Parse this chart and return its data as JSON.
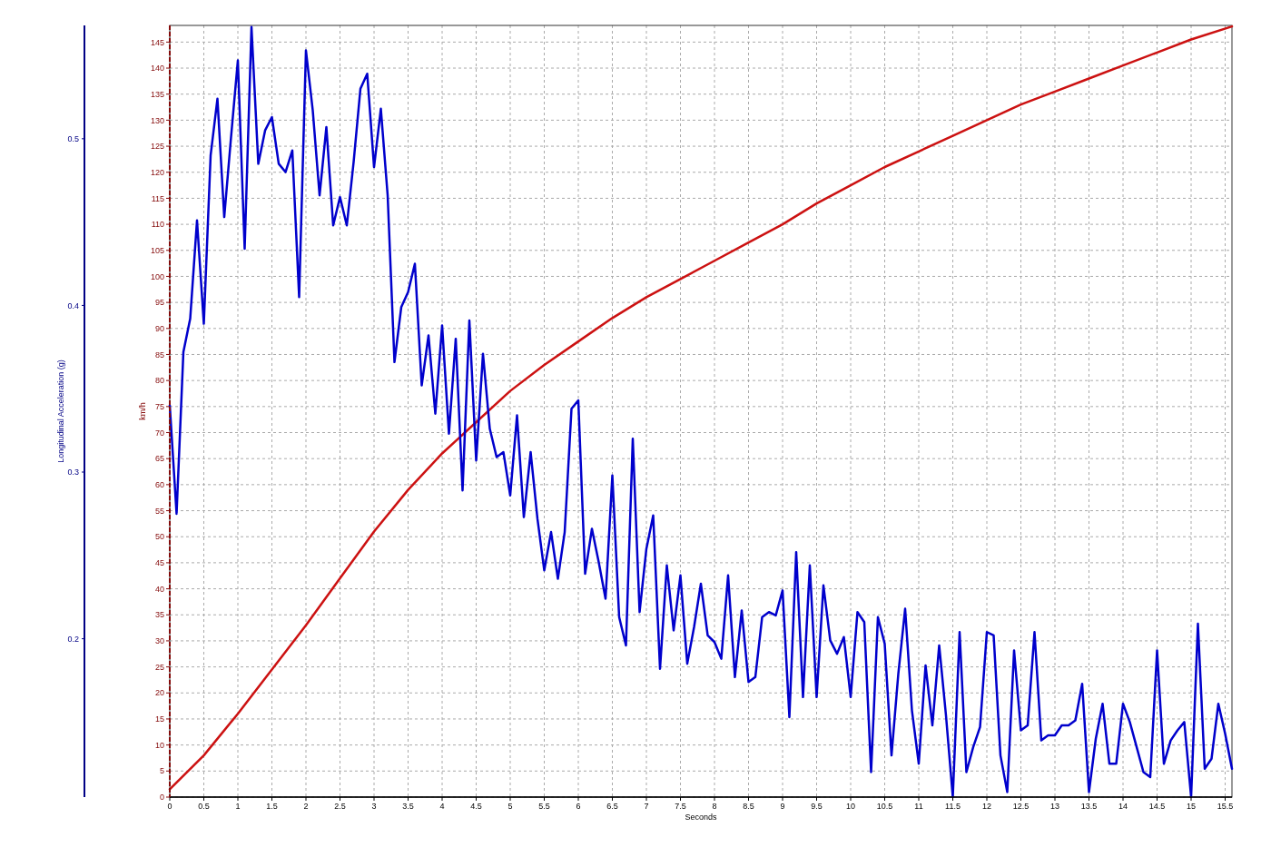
{
  "chart_data": {
    "type": "line",
    "xlabel": "Seconds",
    "ylabel": "km/h",
    "y2label": "Longitudinal Acceleration (g)",
    "xlim": [
      0,
      15.6
    ],
    "xticks": [
      0,
      0.5,
      1,
      1.5,
      2,
      2.5,
      3,
      3.5,
      4,
      4.5,
      5,
      5.5,
      6,
      6.5,
      7,
      7.5,
      8,
      8.5,
      9,
      9.5,
      10,
      10.5,
      11,
      11.5,
      12,
      12.5,
      13,
      13.5,
      14,
      14.5,
      15,
      15.5
    ],
    "ylim": [
      0,
      148.2
    ],
    "yticks": [
      0,
      5,
      10,
      15,
      20,
      25,
      30,
      35,
      40,
      45,
      50,
      55,
      60,
      65,
      70,
      75,
      80,
      85,
      90,
      95,
      100,
      105,
      110,
      115,
      120,
      125,
      130,
      135,
      140,
      145
    ],
    "y2lim": [
      0.105,
      0.568
    ],
    "y2ticks": [
      0.2,
      0.3,
      0.4,
      0.5
    ],
    "grid": true,
    "line_style": "solid",
    "marker": "none",
    "series": [
      {
        "color": "#cc1111",
        "x": [
          0,
          0.5,
          1,
          1.5,
          2,
          2.5,
          3,
          3.5,
          4,
          4.5,
          5,
          5.5,
          6,
          6.5,
          7,
          7.5,
          8,
          8.5,
          9,
          9.5,
          10,
          10.5,
          11,
          11.5,
          12,
          12.5,
          13,
          13.5,
          14,
          14.5,
          15,
          15.6
        ],
        "values": [
          1.5,
          8,
          16,
          24.5,
          33,
          42,
          51,
          59,
          66,
          72,
          78,
          83,
          87.5,
          92,
          96,
          99.5,
          103,
          106.5,
          110,
          114,
          117.5,
          121,
          124,
          127,
          130,
          133,
          135.5,
          138,
          140.5,
          143,
          145.5,
          148
        ]
      },
      {
        "color": "#0000cc",
        "axis": "y2",
        "x": [
          0,
          0.1,
          0.2,
          0.3,
          0.4,
          0.5,
          0.6,
          0.7,
          0.8,
          0.9,
          1,
          1.1,
          1.2,
          1.3,
          1.4,
          1.5,
          1.6,
          1.7,
          1.8,
          1.9,
          2,
          2.1,
          2.2,
          2.3,
          2.4,
          2.5,
          2.6,
          2.7,
          2.8,
          2.9,
          3,
          3.1,
          3.2,
          3.3,
          3.4,
          3.5,
          3.6,
          3.7,
          3.8,
          3.9,
          4,
          4.1,
          4.2,
          4.3,
          4.4,
          4.5,
          4.6,
          4.7,
          4.8,
          4.9,
          5,
          5.1,
          5.2,
          5.3,
          5.4,
          5.5,
          5.6,
          5.7,
          5.8,
          5.9,
          6,
          6.1,
          6.2,
          6.3,
          6.4,
          6.5,
          6.6,
          6.7,
          6.8,
          6.9,
          7,
          7.1,
          7.2,
          7.3,
          7.4,
          7.5,
          7.6,
          7.7,
          7.8,
          7.9,
          8,
          8.1,
          8.2,
          8.3,
          8.4,
          8.5,
          8.6,
          8.7,
          8.8,
          8.9,
          9,
          9.1,
          9.2,
          9.3,
          9.4,
          9.5,
          9.6,
          9.7,
          9.8,
          9.9,
          10,
          10.1,
          10.2,
          10.3,
          10.4,
          10.5,
          10.6,
          10.7,
          10.8,
          10.9,
          11,
          11.1,
          11.2,
          11.3,
          11.4,
          11.5,
          11.6,
          11.7,
          11.8,
          11.9,
          12,
          12.1,
          12.2,
          12.3,
          12.4,
          12.5,
          12.6,
          12.7,
          12.8,
          12.9,
          13,
          13.1,
          13.2,
          13.3,
          13.4,
          13.5,
          13.6,
          13.7,
          13.8,
          13.9,
          14,
          14.1,
          14.2,
          14.3,
          14.4,
          14.5,
          14.6,
          14.7,
          14.8,
          14.9,
          15,
          15.1,
          15.2,
          15.3,
          15.4,
          15.5,
          15.6
        ],
        "values": [
          0.34,
          0.275,
          0.372,
          0.392,
          0.451,
          0.389,
          0.49,
          0.524,
          0.453,
          0.501,
          0.547,
          0.434,
          0.567,
          0.485,
          0.505,
          0.513,
          0.485,
          0.48,
          0.493,
          0.405,
          0.553,
          0.517,
          0.466,
          0.507,
          0.448,
          0.465,
          0.448,
          0.486,
          0.53,
          0.539,
          0.483,
          0.518,
          0.466,
          0.366,
          0.399,
          0.408,
          0.425,
          0.352,
          0.382,
          0.335,
          0.388,
          0.323,
          0.38,
          0.289,
          0.391,
          0.307,
          0.371,
          0.326,
          0.309,
          0.312,
          0.286,
          0.334,
          0.273,
          0.312,
          0.272,
          0.241,
          0.264,
          0.236,
          0.264,
          0.338,
          0.343,
          0.239,
          0.266,
          0.246,
          0.224,
          0.298,
          0.213,
          0.196,
          0.32,
          0.216,
          0.254,
          0.274,
          0.182,
          0.244,
          0.205,
          0.238,
          0.185,
          0.207,
          0.233,
          0.202,
          0.198,
          0.188,
          0.238,
          0.177,
          0.217,
          0.174,
          0.177,
          0.213,
          0.216,
          0.214,
          0.229,
          0.153,
          0.252,
          0.165,
          0.244,
          0.165,
          0.232,
          0.199,
          0.191,
          0.201,
          0.165,
          0.216,
          0.21,
          0.12,
          0.213,
          0.197,
          0.13,
          0.179,
          0.218,
          0.157,
          0.125,
          0.184,
          0.148,
          0.196,
          0.154,
          0.105,
          0.204,
          0.12,
          0.135,
          0.147,
          0.204,
          0.202,
          0.13,
          0.108,
          0.193,
          0.145,
          0.148,
          0.204,
          0.139,
          0.142,
          0.142,
          0.148,
          0.148,
          0.151,
          0.173,
          0.108,
          0.14,
          0.161,
          0.125,
          0.125,
          0.161,
          0.15,
          0.135,
          0.12,
          0.117,
          0.193,
          0.125,
          0.139,
          0.145,
          0.15,
          0.105,
          0.209,
          0.122,
          0.128,
          0.161,
          0.143,
          0.122
        ]
      }
    ]
  }
}
